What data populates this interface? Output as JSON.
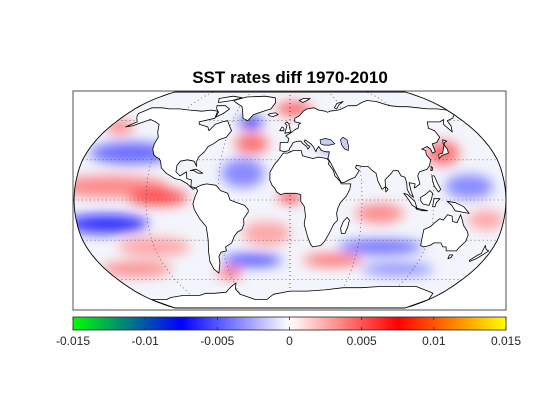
{
  "map": {
    "title": "SST rates diff 1970-2010",
    "projection": "robinson",
    "graticule": "dotted",
    "land_color": "#ffffff",
    "coastline_color": "#000000",
    "anomaly_regions": [
      {
        "lon": -150,
        "lat": 10,
        "rx": 48,
        "ry": 9,
        "value": 0.004
      },
      {
        "lon": -110,
        "lat": 2,
        "rx": 25,
        "ry": 7,
        "value": 0.006
      },
      {
        "lon": -140,
        "lat": 35,
        "rx": 35,
        "ry": 9,
        "value": -0.005
      },
      {
        "lon": -155,
        "lat": -18,
        "rx": 35,
        "ry": 8,
        "value": -0.007
      },
      {
        "lon": -120,
        "lat": -35,
        "rx": 30,
        "ry": 8,
        "value": 0.003
      },
      {
        "lon": -150,
        "lat": -52,
        "rx": 30,
        "ry": 6,
        "value": 0.004
      },
      {
        "lon": -40,
        "lat": 20,
        "rx": 18,
        "ry": 12,
        "value": -0.004
      },
      {
        "lon": -35,
        "lat": 42,
        "rx": 14,
        "ry": 8,
        "value": 0.005
      },
      {
        "lon": -40,
        "lat": 58,
        "rx": 10,
        "ry": 5,
        "value": -0.008
      },
      {
        "lon": -20,
        "lat": -25,
        "rx": 20,
        "ry": 10,
        "value": 0.003
      },
      {
        "lon": 0,
        "lat": 2,
        "rx": 10,
        "ry": 5,
        "value": 0.006
      },
      {
        "lon": -35,
        "lat": -45,
        "rx": 25,
        "ry": 5,
        "value": -0.006
      },
      {
        "lon": 75,
        "lat": -10,
        "rx": 20,
        "ry": 8,
        "value": 0.004
      },
      {
        "lon": 80,
        "lat": -35,
        "rx": 35,
        "ry": 6,
        "value": -0.005
      },
      {
        "lon": 40,
        "lat": -45,
        "rx": 25,
        "ry": 5,
        "value": 0.005
      },
      {
        "lon": 135,
        "lat": 35,
        "rx": 14,
        "ry": 10,
        "value": 0.005
      },
      {
        "lon": 150,
        "lat": 10,
        "rx": 20,
        "ry": 10,
        "value": -0.004
      },
      {
        "lon": 165,
        "lat": -15,
        "rx": 15,
        "ry": 8,
        "value": 0.003
      },
      {
        "lon": 105,
        "lat": -52,
        "rx": 30,
        "ry": 5,
        "value": -0.004
      },
      {
        "lon": 5,
        "lat": 70,
        "rx": 15,
        "ry": 5,
        "value": 0.006
      },
      {
        "lon": 35,
        "lat": 40,
        "rx": 6,
        "ry": 3,
        "value": -0.008
      },
      {
        "lon": -170,
        "lat": 55,
        "rx": 12,
        "ry": 6,
        "value": 0.004
      },
      {
        "lon": -60,
        "lat": -55,
        "rx": 10,
        "ry": 4,
        "value": 0.006
      }
    ]
  },
  "colorbar": {
    "range": [
      -0.015,
      0.015
    ],
    "ticks": [
      -0.015,
      -0.01,
      -0.005,
      0,
      0.005,
      0.01,
      0.015
    ],
    "tick_labels": [
      "-0.015",
      "-0.01",
      "-0.005",
      "0",
      "0.005",
      "0.01",
      "0.015"
    ],
    "colors": [
      "#00ff00",
      "#0000ff",
      "#ffffff",
      "#ff0000",
      "#ffff00"
    ]
  }
}
